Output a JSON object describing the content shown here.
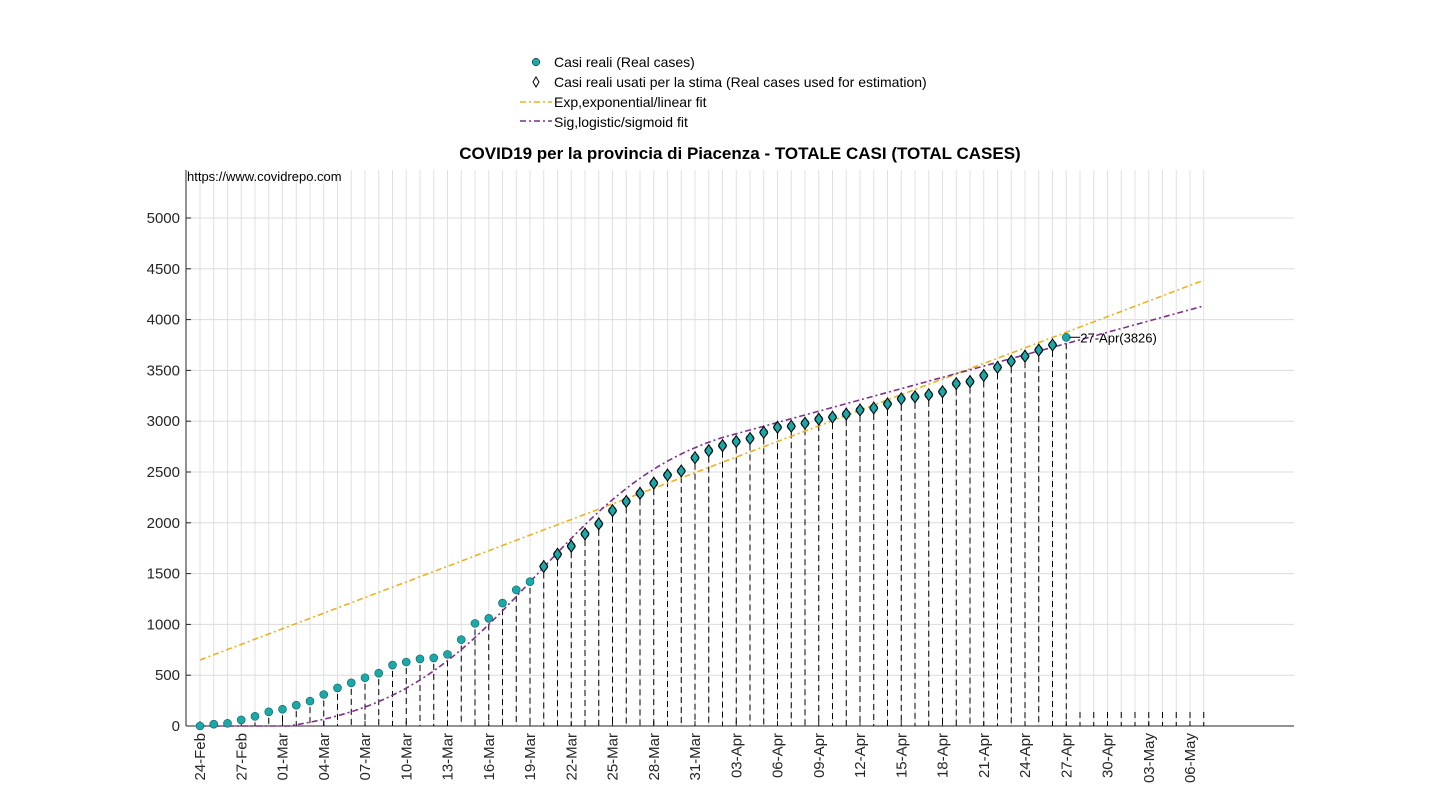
{
  "chart_data": {
    "type": "scatter",
    "title": "COVID19 per la provincia di Piacenza - TOTALE CASI (TOTAL CASES)",
    "watermark": "https://www.covidrepo.com",
    "xlabel": "",
    "ylabel": "",
    "ylim": [
      0,
      5400
    ],
    "yticks": [
      0,
      500,
      1000,
      1500,
      2000,
      2500,
      3000,
      3500,
      4000,
      4500,
      5000
    ],
    "x_start": "24-Feb",
    "x_ticks": [
      "24-Feb",
      "27-Feb",
      "01-Mar",
      "04-Mar",
      "07-Mar",
      "10-Mar",
      "13-Mar",
      "16-Mar",
      "19-Mar",
      "22-Mar",
      "25-Mar",
      "28-Mar",
      "31-Mar",
      "03-Apr",
      "06-Apr",
      "09-Apr",
      "12-Apr",
      "15-Apr",
      "18-Apr",
      "21-Apr",
      "24-Apr",
      "27-Apr",
      "30-Apr",
      "03-May",
      "06-May"
    ],
    "grid": true,
    "legend_position": "top",
    "legend": [
      {
        "label": "Casi reali (Real cases)",
        "marker": "circle-filled",
        "color": "#1aa8a8"
      },
      {
        "label": "Casi reali usati per la stima (Real cases used for estimation)",
        "marker": "diamond",
        "color": "#000000"
      },
      {
        "label": "Exp,exponential/linear fit",
        "marker": "dash-dot",
        "color": "#EDB120"
      },
      {
        "label": "Sig,logistic/sigmoid fit",
        "marker": "dash-dot",
        "color": "#7E2F8E"
      }
    ],
    "series": [
      {
        "name": "Casi reali (Real cases)",
        "color": "#1aa8a8",
        "values": [
          0,
          18,
          26,
          60,
          95,
          140,
          165,
          205,
          245,
          310,
          375,
          425,
          475,
          520,
          600,
          630,
          660,
          670,
          705,
          850,
          1010,
          1060,
          1210,
          1340,
          1420,
          1570,
          1690,
          1770,
          1890,
          1990,
          2120,
          2210,
          2290,
          2390,
          2470,
          2510,
          2640,
          2710,
          2760,
          2800,
          2830,
          2890,
          2940,
          2950,
          2980,
          3020,
          3040,
          3070,
          3110,
          3130,
          3170,
          3220,
          3240,
          3260,
          3290,
          3370,
          3390,
          3450,
          3530,
          3590,
          3640,
          3700,
          3750,
          3826
        ]
      },
      {
        "name": "Casi reali usati per la stima (Real cases used for estimation)",
        "color": "#000000",
        "start_index": 25,
        "values": [
          1570,
          1690,
          1770,
          1890,
          1990,
          2120,
          2210,
          2290,
          2390,
          2470,
          2510,
          2640,
          2710,
          2760,
          2800,
          2830,
          2890,
          2940,
          2950,
          2980,
          3020,
          3040,
          3070,
          3110,
          3130,
          3170,
          3220,
          3240,
          3260,
          3290,
          3370,
          3390,
          3450,
          3530,
          3590,
          3640,
          3700,
          3750,
          3826
        ]
      },
      {
        "name": "Exp,exponential/linear fit",
        "color": "#EDB120",
        "line": {
          "intercept": 650,
          "slope": 51.2,
          "x_max": 73
        }
      },
      {
        "name": "Sig,logistic/sigmoid fit",
        "color": "#7E2F8E",
        "logistic": {
          "offset": -120,
          "amplitude": 3220,
          "midpoint": 24.5,
          "rate": 0.18,
          "linear_start": 38,
          "linear_slope": 37,
          "x_max": 73
        }
      }
    ],
    "annotation": {
      "text": "27-Apr(3826)",
      "index": 63,
      "value": 3826
    },
    "total_days": 74
  }
}
